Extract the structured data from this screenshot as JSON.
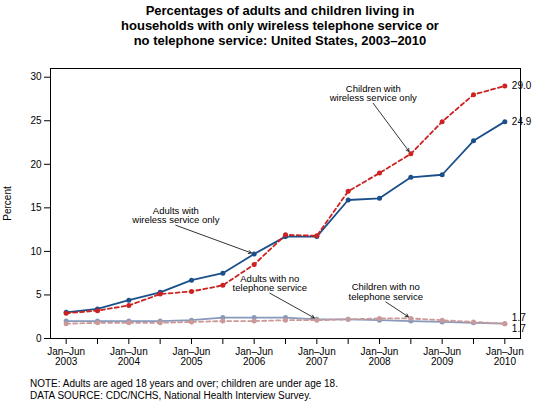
{
  "chart_data": {
    "type": "line",
    "title": "Percentages of adults and children living in\nhouseholds with only wireless telephone service or\nno telephone service: United States, 2003–2010",
    "ylabel": "Percent",
    "note": "NOTE: Adults are aged 18 years and over; children are under age 18.\nDATA SOURCE: CDC/NCHS, National Health Interview Survey.",
    "categories": [
      "Jan–Jun\n2003",
      null,
      "Jan–Jun\n2004",
      null,
      "Jan–Jun\n2005",
      null,
      "Jan–Jun\n2006",
      null,
      "Jan–Jun\n2007",
      null,
      "Jan–Jun\n2008",
      null,
      "Jan–Jun\n2009",
      null,
      "Jan–Jun\n2010"
    ],
    "ylim": [
      0,
      31
    ],
    "yticks": [
      0,
      5,
      10,
      15,
      20,
      25,
      30
    ],
    "grid": false,
    "series": [
      {
        "color": "#1a4f8a",
        "line_style": "solid",
        "marker": "circle",
        "end_label": "24.9",
        "values": [
          3.0,
          3.4,
          4.4,
          5.3,
          6.7,
          7.5,
          9.7,
          11.7,
          11.7,
          15.9,
          16.1,
          18.5,
          18.8,
          22.7,
          24.9
        ]
      },
      {
        "color": "#cc2222",
        "line_style": "dashed",
        "marker": "circle",
        "end_label": "29.0",
        "values": [
          2.9,
          3.2,
          3.8,
          5.1,
          5.4,
          6.1,
          8.5,
          11.9,
          11.8,
          16.9,
          19.0,
          21.2,
          24.9,
          28.0,
          29.0
        ]
      },
      {
        "color": "#8899bb",
        "line_style": "solid",
        "marker": "circle",
        "end_label": "1.7",
        "values": [
          2.0,
          2.0,
          2.0,
          2.0,
          2.1,
          2.4,
          2.4,
          2.4,
          2.2,
          2.2,
          2.1,
          2.0,
          1.9,
          1.8,
          1.7
        ]
      },
      {
        "color": "#cc9999",
        "line_style": "dashed",
        "marker": "circle",
        "end_label": "1.7",
        "values": [
          1.7,
          1.8,
          1.8,
          1.8,
          1.9,
          2.0,
          2.0,
          2.1,
          2.1,
          2.2,
          2.3,
          2.3,
          2.1,
          1.9,
          1.7
        ]
      }
    ],
    "annotations": [
      {
        "text": "Adults with\nwireless service only",
        "x": 6.0,
        "y": 9.7,
        "text_x": 3.5,
        "text_y": 13.0
      },
      {
        "text": "Children with\nwireless service only",
        "x": 11.0,
        "y": 21.2,
        "text_x": 9.8,
        "text_y": 27.0
      },
      {
        "text": "Adults with no\ntelephone service",
        "x": 8.0,
        "y": 2.2,
        "text_x": 6.5,
        "text_y": 5.2
      },
      {
        "text": "Children with no\ntelephone service",
        "x": 11.0,
        "y": 2.3,
        "text_x": 10.2,
        "text_y": 4.2
      }
    ]
  }
}
